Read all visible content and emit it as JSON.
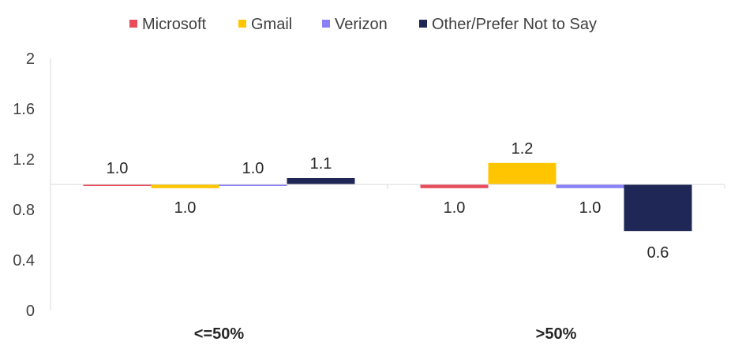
{
  "chart_data": {
    "type": "bar",
    "categories": [
      "<=50%",
      ">50%"
    ],
    "baseline": 1.0,
    "ylim": [
      0,
      2
    ],
    "yticks": [
      "0",
      "0.4",
      "0.8",
      "1.2",
      "1.6",
      "2"
    ],
    "legend_position": "top",
    "grid": false,
    "series": [
      {
        "name": "Microsoft",
        "color": "#E84C5B",
        "values": [
          1.0,
          0.97
        ],
        "labels": [
          "1.0",
          "1.0"
        ]
      },
      {
        "name": "Gmail",
        "color": "#FFC500",
        "values": [
          0.97,
          1.17
        ],
        "labels": [
          "1.0",
          "1.2"
        ]
      },
      {
        "name": "Verizon",
        "color": "#8A80F5",
        "values": [
          1.0,
          0.97
        ],
        "labels": [
          "1.0",
          "1.0"
        ]
      },
      {
        "name": "Other/Prefer Not to Say",
        "color": "#1E2756",
        "values": [
          1.05,
          0.63
        ],
        "labels": [
          "1.1",
          "0.6"
        ]
      }
    ]
  }
}
